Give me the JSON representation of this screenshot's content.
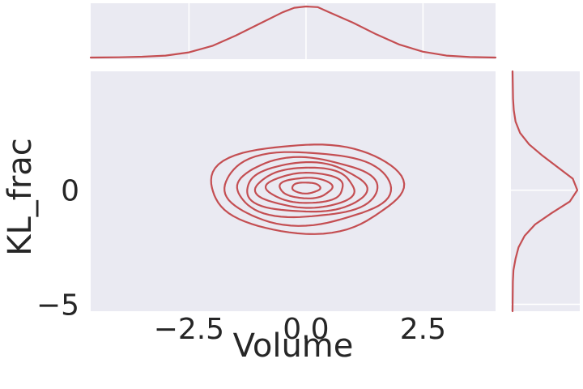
{
  "chart_data": {
    "type": "joint-kde",
    "xlabel": "Volume",
    "ylabel": "KL_frac",
    "xlim": [
      -4.6,
      4.05
    ],
    "ylim": [
      -5.3,
      5.2
    ],
    "x_ticks": [
      -2.5,
      0.0,
      2.5
    ],
    "x_tick_labels": [
      "−2.5",
      "0.0",
      "2.5"
    ],
    "y_ticks": [
      -5,
      0
    ],
    "y_tick_labels": [
      "−5",
      "0"
    ],
    "grid": true,
    "color": "#c44e52",
    "panel_color": "#eaeaf2",
    "joint": {
      "center": [
        0.0,
        0.1
      ],
      "levels": [
        {
          "rx": 2.05,
          "ry": 1.95
        },
        {
          "rx": 1.78,
          "ry": 1.6
        },
        {
          "rx": 1.5,
          "ry": 1.3
        },
        {
          "rx": 1.28,
          "ry": 1.08
        },
        {
          "rx": 1.05,
          "ry": 0.88
        },
        {
          "rx": 0.82,
          "ry": 0.66
        },
        {
          "rx": 0.56,
          "ry": 0.45
        },
        {
          "rx": 0.3,
          "ry": 0.24
        }
      ]
    },
    "marginal_x": {
      "x": [
        -4.6,
        -4.0,
        -3.5,
        -3.0,
        -2.5,
        -2.0,
        -1.5,
        -1.0,
        -0.5,
        -0.25,
        0.0,
        0.25,
        0.5,
        1.0,
        1.5,
        2.0,
        2.5,
        3.0,
        3.5,
        4.05
      ],
      "density": [
        0.0,
        0.002,
        0.006,
        0.015,
        0.04,
        0.09,
        0.17,
        0.26,
        0.35,
        0.385,
        0.395,
        0.39,
        0.35,
        0.27,
        0.18,
        0.1,
        0.045,
        0.015,
        0.004,
        0.0
      ]
    },
    "marginal_y": {
      "y": [
        -5.3,
        -4.0,
        -3.5,
        -3.0,
        -2.5,
        -2.0,
        -1.5,
        -1.0,
        -0.5,
        0.0,
        0.5,
        1.0,
        1.5,
        2.0,
        2.5,
        3.0,
        3.5,
        4.0,
        5.2
      ],
      "density": [
        0.0,
        0.002,
        0.006,
        0.02,
        0.04,
        0.08,
        0.15,
        0.26,
        0.38,
        0.43,
        0.4,
        0.3,
        0.2,
        0.11,
        0.05,
        0.02,
        0.008,
        0.003,
        0.0
      ]
    }
  }
}
